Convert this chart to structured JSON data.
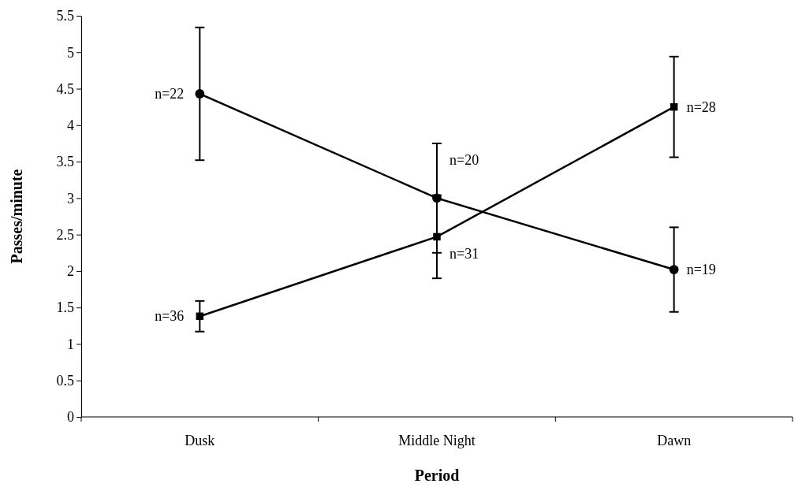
{
  "chart_data": {
    "type": "line",
    "xlabel": "Period",
    "ylabel": "Passes/minute",
    "categories": [
      "Dusk",
      "Middle Night",
      "Dawn"
    ],
    "ylim": [
      0,
      5.5
    ],
    "yticks": [
      0,
      0.5,
      1,
      1.5,
      2,
      2.5,
      3,
      3.5,
      4,
      4.5,
      5,
      5.5
    ],
    "series": [
      {
        "color": "#000000",
        "marker": "circle",
        "values": [
          4.43,
          3.0,
          2.02
        ],
        "errors": [
          0.91,
          0.75,
          0.58
        ]
      },
      {
        "color": "#000000",
        "marker": "square",
        "values": [
          1.38,
          2.47,
          4.25
        ],
        "errors": [
          0.21,
          0.57,
          0.69
        ]
      }
    ],
    "annotations": [
      {
        "text": "n=22",
        "x": "Dusk",
        "y": 4.43
      },
      {
        "text": "n=20",
        "x": "Middle Night",
        "y": 3.0
      },
      {
        "text": "n=19",
        "x": "Dawn",
        "y": 2.02
      },
      {
        "text": "n=36",
        "x": "Dusk",
        "y": 1.38
      },
      {
        "text": "n=31",
        "x": "Middle Night",
        "y": 2.47
      },
      {
        "text": "n=28",
        "x": "Dawn",
        "y": 4.25
      }
    ]
  }
}
